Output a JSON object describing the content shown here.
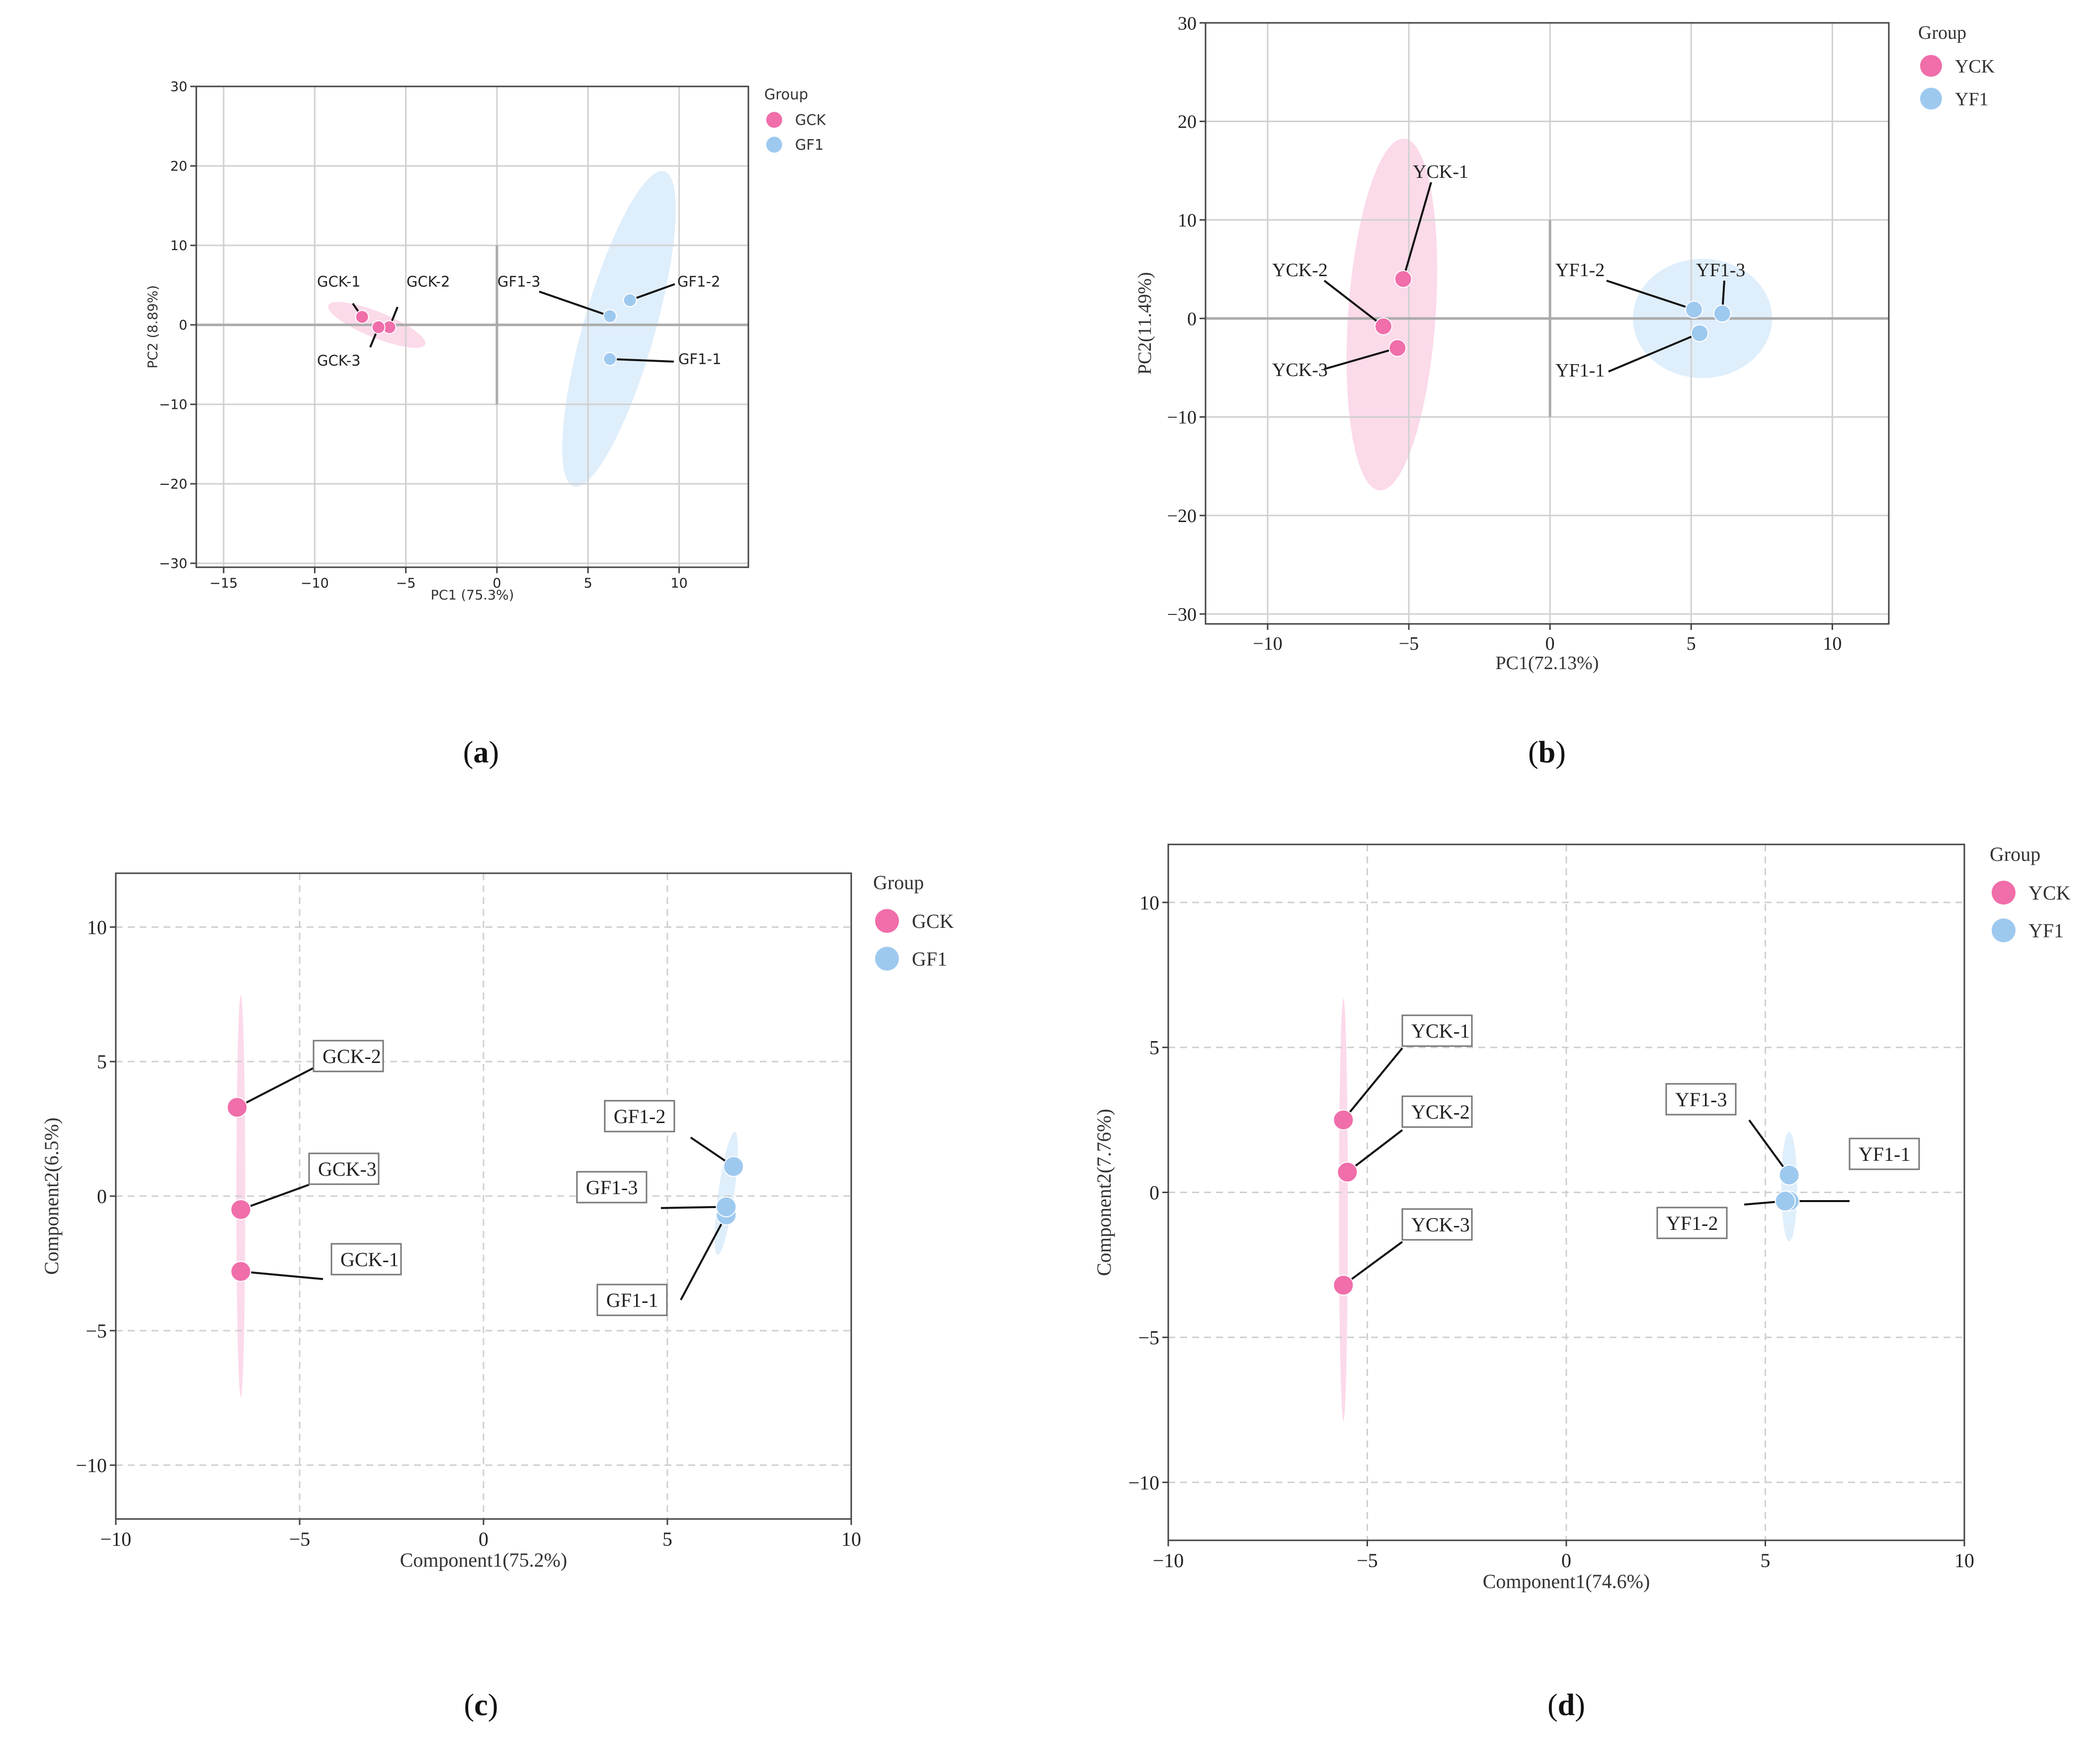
{
  "colors": {
    "pink": "#f06eaa",
    "blue": "#9ec9ef",
    "pink_ellipse": "#fad4e6",
    "blue_ellipse": "#d9ebfa",
    "grid": "#d0d0d0",
    "axis": "#444444"
  },
  "panel_labels": [
    "(a)",
    "(b)",
    "(c)",
    "(d)"
  ],
  "chart_data": [
    {
      "id": "a",
      "type": "scatter",
      "title": "",
      "xlabel": "PC1  (75.3%)",
      "ylabel": "PC2  (8.89%)",
      "xlim": [
        -16.5,
        13.8
      ],
      "ylim": [
        -30.5,
        30
      ],
      "xticks": [
        -15,
        -10,
        -5,
        0,
        5,
        10
      ],
      "yticks": [
        -30,
        -20,
        -10,
        0,
        10,
        20,
        30
      ],
      "tick_labels_x": [
        "−15",
        "−10",
        "−5",
        "0",
        "5",
        "10"
      ],
      "tick_labels_y": [
        "−30",
        "−20",
        "−10",
        "0",
        "10",
        "20",
        "30"
      ],
      "legend": {
        "title": "Group",
        "entries": [
          "GCK",
          "GF1"
        ],
        "position": "right"
      },
      "series": [
        {
          "name": "GCK",
          "color": "pink",
          "points": [
            {
              "label": "GCK-1",
              "x": -7.4,
              "y": 1.0
            },
            {
              "label": "GCK-2",
              "x": -5.9,
              "y": -0.3
            },
            {
              "label": "GCK-3",
              "x": -6.5,
              "y": -0.3
            }
          ]
        },
        {
          "name": "GF1",
          "color": "blue",
          "points": [
            {
              "label": "GF1-1",
              "x": 6.2,
              "y": -4.3
            },
            {
              "label": "GF1-2",
              "x": 7.3,
              "y": 3.1
            },
            {
              "label": "GF1-3",
              "x": 6.2,
              "y": 1.1
            }
          ]
        }
      ]
    },
    {
      "id": "b",
      "type": "scatter",
      "title": "",
      "xlabel": "PC1(72.13%)",
      "ylabel": "PC2(11.49%)",
      "xlim": [
        -12.2,
        12.0
      ],
      "ylim": [
        -31,
        30
      ],
      "xticks": [
        -10,
        -5,
        0,
        5,
        10
      ],
      "yticks": [
        -30,
        -20,
        -10,
        0,
        10,
        20,
        30
      ],
      "tick_labels_x": [
        "−10",
        "−5",
        "0",
        "5",
        "10"
      ],
      "tick_labels_y": [
        "−30",
        "−20",
        "−10",
        "0",
        "10",
        "20",
        "30"
      ],
      "legend": {
        "title": "Group",
        "entries": [
          "YCK",
          "YF1"
        ],
        "position": "right"
      },
      "series": [
        {
          "name": "YCK",
          "color": "pink",
          "points": [
            {
              "label": "YCK-1",
              "x": -5.2,
              "y": 4.0
            },
            {
              "label": "YCK-2",
              "x": -5.9,
              "y": -0.8
            },
            {
              "label": "YCK-3",
              "x": -5.4,
              "y": -3.0
            }
          ]
        },
        {
          "name": "YF1",
          "color": "blue",
          "points": [
            {
              "label": "YF1-1",
              "x": 5.3,
              "y": -1.5
            },
            {
              "label": "YF1-2",
              "x": 5.1,
              "y": 0.9
            },
            {
              "label": "YF1-3",
              "x": 6.1,
              "y": 0.5
            }
          ]
        }
      ]
    },
    {
      "id": "c",
      "type": "scatter",
      "title": "",
      "xlabel": "Component1(75.2%)",
      "ylabel": "Component2(6.5%)",
      "xlim": [
        -10,
        10
      ],
      "ylim": [
        -12,
        12
      ],
      "xticks": [
        -10,
        -5,
        0,
        5,
        10
      ],
      "yticks": [
        -10,
        -5,
        0,
        5,
        10
      ],
      "tick_labels_x": [
        "−10",
        "−5",
        "0",
        "5",
        "10"
      ],
      "tick_labels_y": [
        "−10",
        "−5",
        "0",
        "5",
        "10"
      ],
      "legend": {
        "title": "Group",
        "entries": [
          "GCK",
          "GF1"
        ],
        "position": "right"
      },
      "series": [
        {
          "name": "GCK",
          "color": "pink",
          "points": [
            {
              "label": "GCK-1",
              "x": -6.6,
              "y": -2.8
            },
            {
              "label": "GCK-2",
              "x": -6.7,
              "y": 3.3
            },
            {
              "label": "GCK-3",
              "x": -6.6,
              "y": -0.5
            }
          ]
        },
        {
          "name": "GF1",
          "color": "blue",
          "points": [
            {
              "label": "GF1-1",
              "x": 6.6,
              "y": -0.7
            },
            {
              "label": "GF1-2",
              "x": 6.8,
              "y": 1.1
            },
            {
              "label": "GF1-3",
              "x": 6.6,
              "y": -0.4
            }
          ]
        }
      ]
    },
    {
      "id": "d",
      "type": "scatter",
      "title": "",
      "xlabel": "Component1(74.6%)",
      "ylabel": "Component2(7.76%)",
      "xlim": [
        -10,
        10
      ],
      "ylim": [
        -12,
        12
      ],
      "xticks": [
        -10,
        -5,
        0,
        5,
        10
      ],
      "yticks": [
        -10,
        -5,
        0,
        5,
        10
      ],
      "tick_labels_x": [
        "−10",
        "−5",
        "0",
        "5",
        "10"
      ],
      "tick_labels_y": [
        "−10",
        "−5",
        "0",
        "5",
        "10"
      ],
      "legend": {
        "title": "Group",
        "entries": [
          "YCK",
          "YF1"
        ],
        "position": "right"
      },
      "series": [
        {
          "name": "YCK",
          "color": "pink",
          "points": [
            {
              "label": "YCK-1",
              "x": -5.6,
              "y": 2.5
            },
            {
              "label": "YCK-2",
              "x": -5.5,
              "y": 0.7
            },
            {
              "label": "YCK-3",
              "x": -5.6,
              "y": -3.2
            }
          ]
        },
        {
          "name": "YF1",
          "color": "blue",
          "points": [
            {
              "label": "YF1-1",
              "x": 5.6,
              "y": -0.3
            },
            {
              "label": "YF1-2",
              "x": 5.5,
              "y": -0.3
            },
            {
              "label": "YF1-3",
              "x": 5.6,
              "y": 0.6
            }
          ]
        }
      ]
    }
  ]
}
